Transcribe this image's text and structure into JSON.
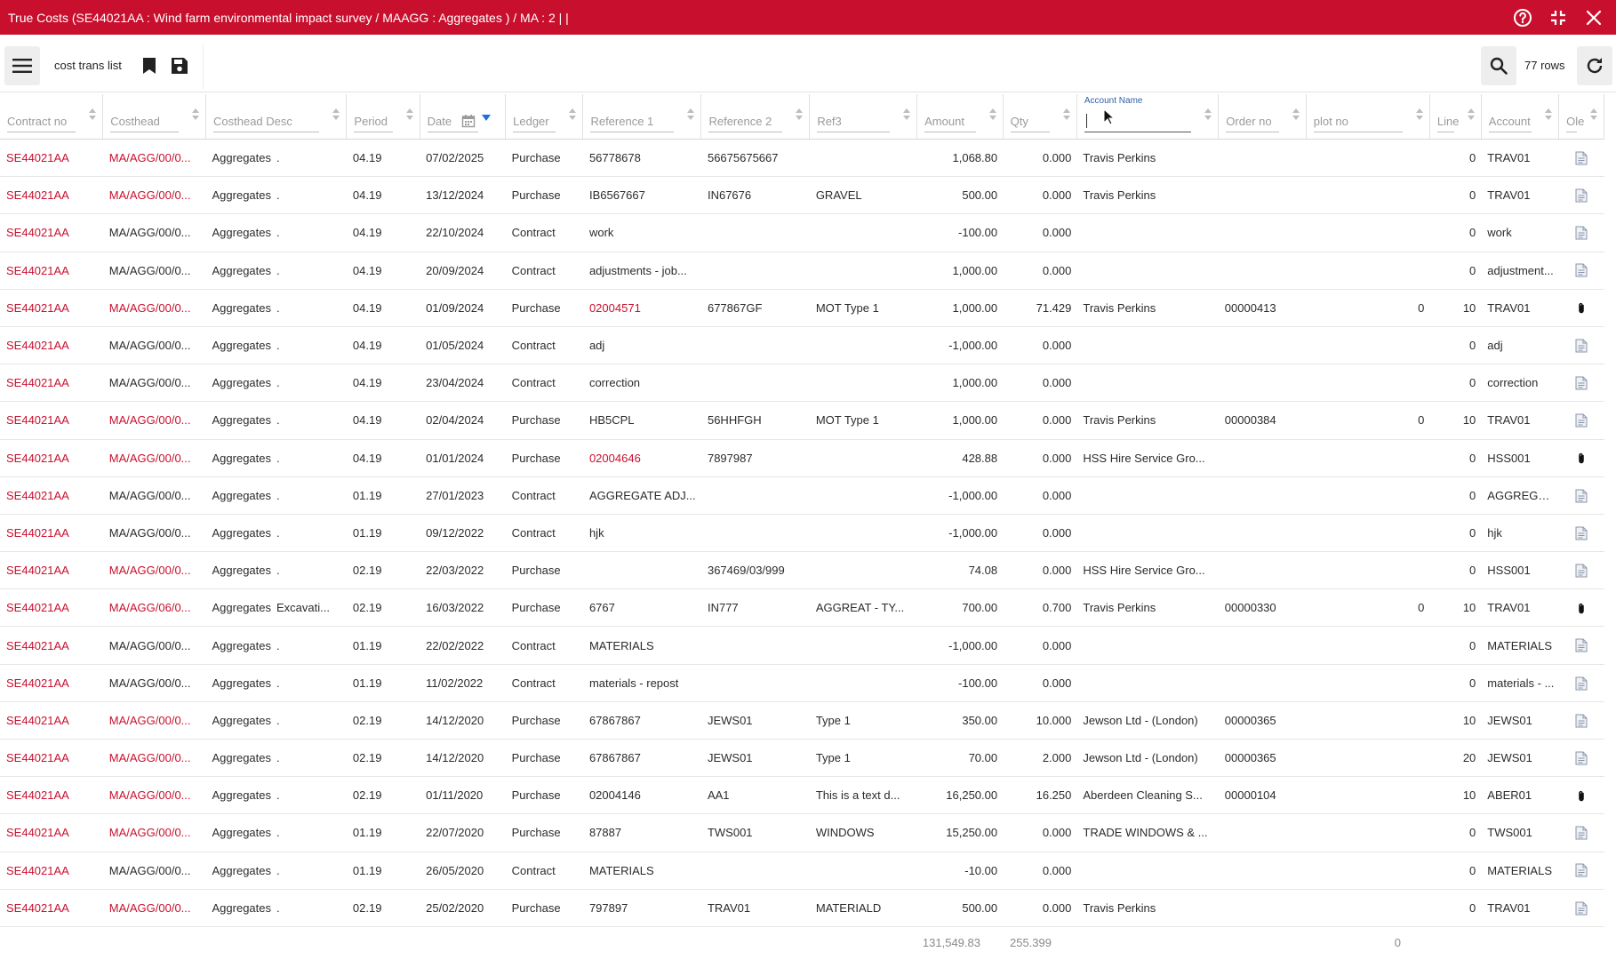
{
  "window": {
    "title": "True Costs (SE44021AA : Wind farm environmental impact survey / MAAGG : Aggregates ) / MA : 2 | |"
  },
  "toolbar": {
    "view_name": "cost trans list",
    "row_count": "77 rows"
  },
  "columns": [
    {
      "key": "contract_no",
      "label": "Contract no"
    },
    {
      "key": "costhead",
      "label": "Costhead"
    },
    {
      "key": "costhead_desc",
      "label": "Costhead Desc"
    },
    {
      "key": "period",
      "label": "Period"
    },
    {
      "key": "date",
      "label": "Date"
    },
    {
      "key": "ledger",
      "label": "Ledger"
    },
    {
      "key": "reference1",
      "label": "Reference 1"
    },
    {
      "key": "reference2",
      "label": "Reference 2"
    },
    {
      "key": "ref3",
      "label": "Ref3"
    },
    {
      "key": "amount",
      "label": "Amount"
    },
    {
      "key": "qty",
      "label": "Qty"
    },
    {
      "key": "account_name",
      "label": "Account Name"
    },
    {
      "key": "order_no",
      "label": "Order no"
    },
    {
      "key": "plot_no",
      "label": "plot no"
    },
    {
      "key": "line",
      "label": "Line"
    },
    {
      "key": "account",
      "label": "Account"
    },
    {
      "key": "ole",
      "label": "Ole"
    }
  ],
  "rows": [
    {
      "contract_no": "SE44021AA",
      "costhead": "MA/AGG/00/0...",
      "costhead_red": true,
      "costhead_desc": "Aggregates",
      "desc2": ".",
      "period": "04.19",
      "date": "07/02/2025",
      "ledger": "Purchase",
      "reference1": "56778678",
      "ref1_red": false,
      "reference2": "56675675667",
      "ref3": "",
      "amount": "1,068.80",
      "qty": "0.000",
      "account_name": "Travis Perkins",
      "order_no": "",
      "plot_no": "",
      "line": "0",
      "account": "TRAV01",
      "ole": "doc"
    },
    {
      "contract_no": "SE44021AA",
      "costhead": "MA/AGG/00/0...",
      "costhead_red": true,
      "costhead_desc": "Aggregates",
      "desc2": ".",
      "period": "04.19",
      "date": "13/12/2024",
      "ledger": "Purchase",
      "reference1": "IB6567667",
      "ref1_red": false,
      "reference2": "IN67676",
      "ref3": "GRAVEL",
      "amount": "500.00",
      "qty": "0.000",
      "account_name": "Travis Perkins",
      "order_no": "",
      "plot_no": "",
      "line": "0",
      "account": "TRAV01",
      "ole": "doc"
    },
    {
      "contract_no": "SE44021AA",
      "costhead": "MA/AGG/00/0...",
      "costhead_red": false,
      "costhead_desc": "Aggregates",
      "desc2": ".",
      "period": "04.19",
      "date": "22/10/2024",
      "ledger": "Contract",
      "reference1": "work",
      "ref1_red": false,
      "reference2": "",
      "ref3": "",
      "amount": "-100.00",
      "qty": "0.000",
      "account_name": "",
      "order_no": "",
      "plot_no": "",
      "line": "0",
      "account": "work",
      "ole": "doc"
    },
    {
      "contract_no": "SE44021AA",
      "costhead": "MA/AGG/00/0...",
      "costhead_red": false,
      "costhead_desc": "Aggregates",
      "desc2": ".",
      "period": "04.19",
      "date": "20/09/2024",
      "ledger": "Contract",
      "reference1": "adjustments - job...",
      "ref1_red": false,
      "reference2": "",
      "ref3": "",
      "amount": "1,000.00",
      "qty": "0.000",
      "account_name": "",
      "order_no": "",
      "plot_no": "",
      "line": "0",
      "account": "adjustment...",
      "ole": "doc"
    },
    {
      "contract_no": "SE44021AA",
      "costhead": "MA/AGG/00/0...",
      "costhead_red": true,
      "costhead_desc": "Aggregates",
      "desc2": ".",
      "period": "04.19",
      "date": "01/09/2024",
      "ledger": "Purchase",
      "reference1": "02004571",
      "ref1_red": true,
      "reference2": "677867GF",
      "ref3": "MOT Type 1",
      "amount": "1,000.00",
      "qty": "71.429",
      "account_name": "Travis Perkins",
      "order_no": "00000413",
      "plot_no": "0",
      "line": "10",
      "account": "TRAV01",
      "ole": "clip"
    },
    {
      "contract_no": "SE44021AA",
      "costhead": "MA/AGG/00/0...",
      "costhead_red": false,
      "costhead_desc": "Aggregates",
      "desc2": ".",
      "period": "04.19",
      "date": "01/05/2024",
      "ledger": "Contract",
      "reference1": "adj",
      "ref1_red": false,
      "reference2": "",
      "ref3": "",
      "amount": "-1,000.00",
      "qty": "0.000",
      "account_name": "",
      "order_no": "",
      "plot_no": "",
      "line": "0",
      "account": "adj",
      "ole": "doc"
    },
    {
      "contract_no": "SE44021AA",
      "costhead": "MA/AGG/00/0...",
      "costhead_red": false,
      "costhead_desc": "Aggregates",
      "desc2": ".",
      "period": "04.19",
      "date": "23/04/2024",
      "ledger": "Contract",
      "reference1": "correction",
      "ref1_red": false,
      "reference2": "",
      "ref3": "",
      "amount": "1,000.00",
      "qty": "0.000",
      "account_name": "",
      "order_no": "",
      "plot_no": "",
      "line": "0",
      "account": "correction",
      "ole": "doc"
    },
    {
      "contract_no": "SE44021AA",
      "costhead": "MA/AGG/00/0...",
      "costhead_red": true,
      "costhead_desc": "Aggregates",
      "desc2": ".",
      "period": "04.19",
      "date": "02/04/2024",
      "ledger": "Purchase",
      "reference1": "HB5CPL",
      "ref1_red": false,
      "reference2": "56HHFGH",
      "ref3": "MOT Type 1",
      "amount": "1,000.00",
      "qty": "0.000",
      "account_name": "Travis Perkins",
      "order_no": "00000384",
      "plot_no": "0",
      "line": "10",
      "account": "TRAV01",
      "ole": "doc"
    },
    {
      "contract_no": "SE44021AA",
      "costhead": "MA/AGG/00/0...",
      "costhead_red": true,
      "costhead_desc": "Aggregates",
      "desc2": ".",
      "period": "04.19",
      "date": "01/01/2024",
      "ledger": "Purchase",
      "reference1": "02004646",
      "ref1_red": true,
      "reference2": "7897987",
      "ref3": "",
      "amount": "428.88",
      "qty": "0.000",
      "account_name": "HSS Hire Service Gro...",
      "order_no": "",
      "plot_no": "",
      "line": "0",
      "account": "HSS001",
      "ole": "clip"
    },
    {
      "contract_no": "SE44021AA",
      "costhead": "MA/AGG/00/0...",
      "costhead_red": false,
      "costhead_desc": "Aggregates",
      "desc2": ".",
      "period": "01.19",
      "date": "27/01/2023",
      "ledger": "Contract",
      "reference1": "AGGREGATE ADJ...",
      "ref1_red": false,
      "reference2": "",
      "ref3": "",
      "amount": "-1,000.00",
      "qty": "0.000",
      "account_name": "",
      "order_no": "",
      "plot_no": "",
      "line": "0",
      "account": "AGGREGAT...",
      "ole": "doc"
    },
    {
      "contract_no": "SE44021AA",
      "costhead": "MA/AGG/00/0...",
      "costhead_red": false,
      "costhead_desc": "Aggregates",
      "desc2": ".",
      "period": "01.19",
      "date": "09/12/2022",
      "ledger": "Contract",
      "reference1": "hjk",
      "ref1_red": false,
      "reference2": "",
      "ref3": "",
      "amount": "-1,000.00",
      "qty": "0.000",
      "account_name": "",
      "order_no": "",
      "plot_no": "",
      "line": "0",
      "account": "hjk",
      "ole": "doc"
    },
    {
      "contract_no": "SE44021AA",
      "costhead": "MA/AGG/00/0...",
      "costhead_red": true,
      "costhead_desc": "Aggregates",
      "desc2": ".",
      "period": "02.19",
      "date": "22/03/2022",
      "ledger": "Purchase",
      "reference1": "",
      "ref1_red": false,
      "reference2": "367469/03/999",
      "ref3": "",
      "amount": "74.08",
      "qty": "0.000",
      "account_name": "HSS Hire Service Gro...",
      "order_no": "",
      "plot_no": "",
      "line": "0",
      "account": "HSS001",
      "ole": "doc"
    },
    {
      "contract_no": "SE44021AA",
      "costhead": "MA/AGG/06/0...",
      "costhead_red": true,
      "costhead_desc": "Aggregates",
      "desc2": "Excavati...",
      "period": "02.19",
      "date": "16/03/2022",
      "ledger": "Purchase",
      "reference1": "6767",
      "ref1_red": false,
      "reference2": "IN777",
      "ref3": "AGGREAT - TY...",
      "amount": "700.00",
      "qty": "0.700",
      "account_name": "Travis Perkins",
      "order_no": "00000330",
      "plot_no": "0",
      "line": "10",
      "account": "TRAV01",
      "ole": "clip"
    },
    {
      "contract_no": "SE44021AA",
      "costhead": "MA/AGG/00/0...",
      "costhead_red": false,
      "costhead_desc": "Aggregates",
      "desc2": ".",
      "period": "01.19",
      "date": "22/02/2022",
      "ledger": "Contract",
      "reference1": "MATERIALS",
      "ref1_red": false,
      "reference2": "",
      "ref3": "",
      "amount": "-1,000.00",
      "qty": "0.000",
      "account_name": "",
      "order_no": "",
      "plot_no": "",
      "line": "0",
      "account": "MATERIALS",
      "ole": "doc"
    },
    {
      "contract_no": "SE44021AA",
      "costhead": "MA/AGG/00/0...",
      "costhead_red": false,
      "costhead_desc": "Aggregates",
      "desc2": ".",
      "period": "01.19",
      "date": "11/02/2022",
      "ledger": "Contract",
      "reference1": "materials - repost",
      "ref1_red": false,
      "reference2": "",
      "ref3": "",
      "amount": "-100.00",
      "qty": "0.000",
      "account_name": "",
      "order_no": "",
      "plot_no": "",
      "line": "0",
      "account": "materials - ...",
      "ole": "doc"
    },
    {
      "contract_no": "SE44021AA",
      "costhead": "MA/AGG/00/0...",
      "costhead_red": true,
      "costhead_desc": "Aggregates",
      "desc2": ".",
      "period": "02.19",
      "date": "14/12/2020",
      "ledger": "Purchase",
      "reference1": "67867867",
      "ref1_red": false,
      "reference2": "JEWS01",
      "ref3": "Type 1",
      "amount": "350.00",
      "qty": "10.000",
      "account_name": "Jewson Ltd - (London)",
      "order_no": "00000365",
      "plot_no": "",
      "line": "10",
      "account": "JEWS01",
      "ole": "doc"
    },
    {
      "contract_no": "SE44021AA",
      "costhead": "MA/AGG/00/0...",
      "costhead_red": true,
      "costhead_desc": "Aggregates",
      "desc2": ".",
      "period": "02.19",
      "date": "14/12/2020",
      "ledger": "Purchase",
      "reference1": "67867867",
      "ref1_red": false,
      "reference2": "JEWS01",
      "ref3": "Type 1",
      "amount": "70.00",
      "qty": "2.000",
      "account_name": "Jewson Ltd - (London)",
      "order_no": "00000365",
      "plot_no": "",
      "line": "20",
      "account": "JEWS01",
      "ole": "doc"
    },
    {
      "contract_no": "SE44021AA",
      "costhead": "MA/AGG/00/0...",
      "costhead_red": true,
      "costhead_desc": "Aggregates",
      "desc2": ".",
      "period": "02.19",
      "date": "01/11/2020",
      "ledger": "Purchase",
      "reference1": "02004146",
      "ref1_red": false,
      "reference2": "AA1",
      "ref3": "This is a text d...",
      "amount": "16,250.00",
      "qty": "16.250",
      "account_name": "Aberdeen Cleaning S...",
      "order_no": "00000104",
      "plot_no": "",
      "line": "10",
      "account": "ABER01",
      "ole": "clip"
    },
    {
      "contract_no": "SE44021AA",
      "costhead": "MA/AGG/00/0...",
      "costhead_red": true,
      "costhead_desc": "Aggregates",
      "desc2": ".",
      "period": "01.19",
      "date": "22/07/2020",
      "ledger": "Purchase",
      "reference1": "87887",
      "ref1_red": false,
      "reference2": "TWS001",
      "ref3": "WINDOWS",
      "amount": "15,250.00",
      "qty": "0.000",
      "account_name": "TRADE WINDOWS & ...",
      "order_no": "",
      "plot_no": "",
      "line": "0",
      "account": "TWS001",
      "ole": "doc"
    },
    {
      "contract_no": "SE44021AA",
      "costhead": "MA/AGG/00/0...",
      "costhead_red": false,
      "costhead_desc": "Aggregates",
      "desc2": ".",
      "period": "01.19",
      "date": "26/05/2020",
      "ledger": "Contract",
      "reference1": "MATERIALS",
      "ref1_red": false,
      "reference2": "",
      "ref3": "",
      "amount": "-10.00",
      "qty": "0.000",
      "account_name": "",
      "order_no": "",
      "plot_no": "",
      "line": "0",
      "account": "MATERIALS",
      "ole": "doc"
    },
    {
      "contract_no": "SE44021AA",
      "costhead": "MA/AGG/00/0...",
      "costhead_red": true,
      "costhead_desc": "Aggregates",
      "desc2": ".",
      "period": "02.19",
      "date": "25/02/2020",
      "ledger": "Purchase",
      "reference1": "797897",
      "ref1_red": false,
      "reference2": "TRAV01",
      "ref3": "MATERIALD",
      "amount": "500.00",
      "qty": "0.000",
      "account_name": "Travis Perkins",
      "order_no": "",
      "plot_no": "",
      "line": "0",
      "account": "TRAV01",
      "ole": "doc"
    }
  ],
  "totals": {
    "amount": "131,549.83",
    "qty": "255.399",
    "plot_no": "0"
  },
  "colors": {
    "brand": "#c8102e",
    "link_red": "#c8102e",
    "sort_active": "#1e6fd9"
  }
}
